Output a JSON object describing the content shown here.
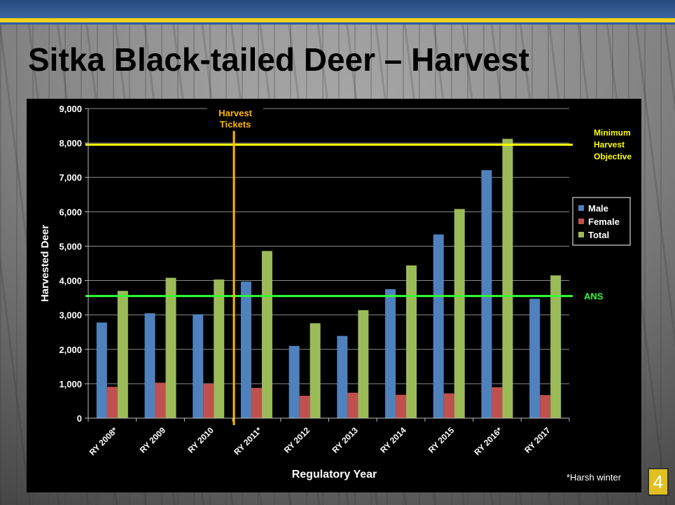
{
  "slide": {
    "title": "Sitka Black-tailed Deer – Harvest",
    "page_number": "4"
  },
  "chart_data": {
    "type": "bar",
    "title": "",
    "xlabel": "Regulatory Year",
    "ylabel": "Harvested Deer",
    "ylim": [
      0,
      9000
    ],
    "yticks": [
      0,
      1000,
      2000,
      3000,
      4000,
      5000,
      6000,
      7000,
      8000,
      9000
    ],
    "ytick_labels": [
      "0",
      "1,000",
      "2,000",
      "3,000",
      "4,000",
      "5,000",
      "6,000",
      "7,000",
      "8,000",
      "9,000"
    ],
    "categories": [
      "RY 2008*",
      "RY 2009",
      "RY 2010",
      "RY 2011*",
      "RY 2012",
      "RY 2013",
      "RY 2014",
      "RY 2015",
      "RY 2016*",
      "RY 2017"
    ],
    "series": [
      {
        "name": "Male",
        "color": "#4f81bd",
        "values": [
          2780,
          3050,
          3020,
          3970,
          2100,
          2390,
          3750,
          5340,
          7210,
          3470
        ]
      },
      {
        "name": "Female",
        "color": "#c0504d",
        "values": [
          910,
          1030,
          1000,
          880,
          650,
          740,
          680,
          720,
          900,
          670
        ]
      },
      {
        "name": "Total",
        "color": "#9bbb59",
        "values": [
          3700,
          4080,
          4030,
          4860,
          2760,
          3140,
          4440,
          6080,
          8120,
          4150
        ]
      }
    ],
    "legend_position": "right",
    "grid": true,
    "reference_lines": [
      {
        "label": "Minimum Harvest Objective",
        "value": 7950,
        "color": "#ffff00"
      },
      {
        "label": "ANS",
        "value": 3550,
        "color": "#33ff33"
      }
    ],
    "vertical_marker": {
      "label": "Harvest Tickets",
      "between": [
        "RY 2010",
        "RY 2011*"
      ],
      "color": "#ffb700"
    },
    "footnote": "*Harsh winter"
  }
}
